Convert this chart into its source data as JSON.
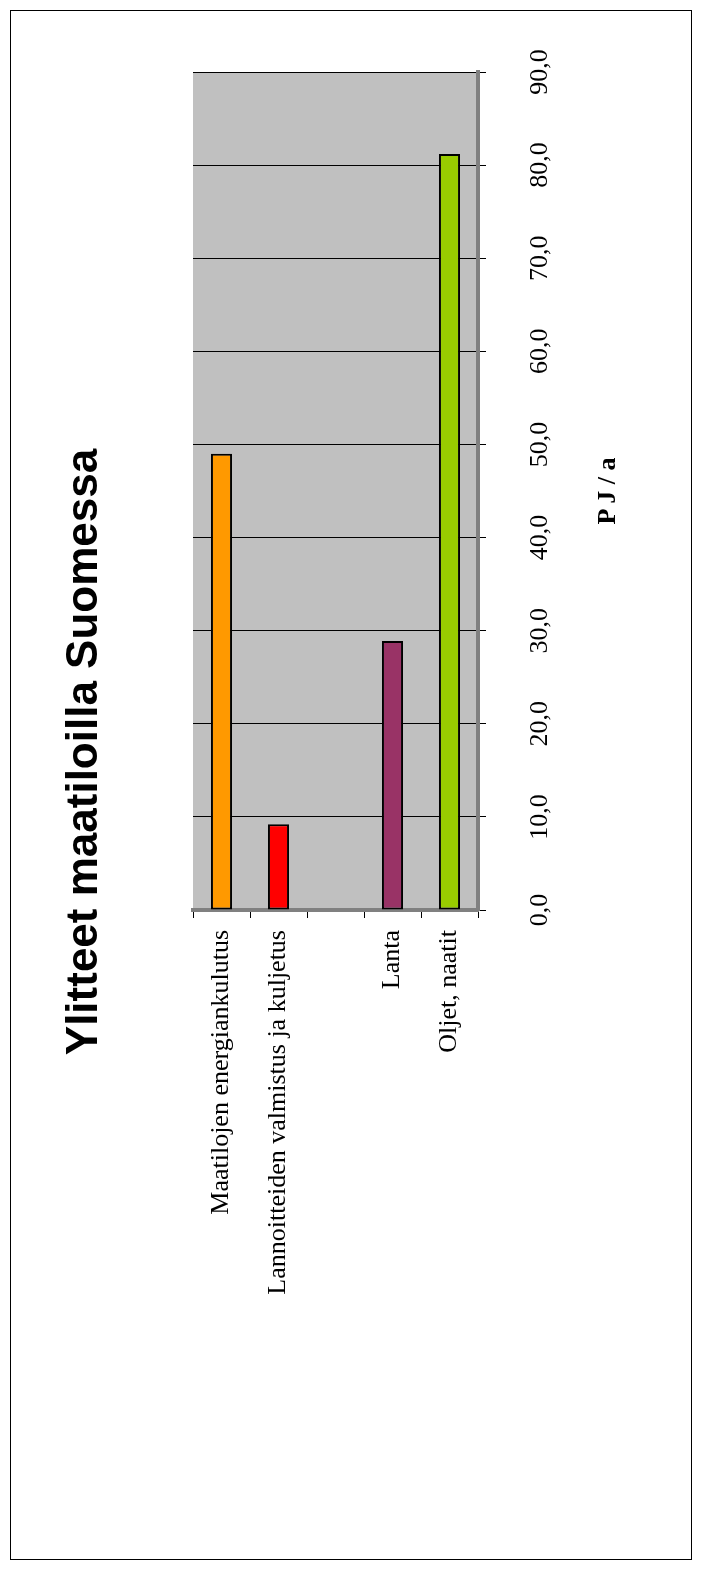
{
  "chart_data": {
    "type": "bar",
    "title": "Ylitteet maatiloilla Suomessa",
    "ylabel": "P J / a",
    "categories": [
      "Maatilojen energiankulutus",
      "Lannoitteiden valmistus ja kuljetus",
      null,
      "Lanta",
      "Oljet, naatit"
    ],
    "values": [
      49,
      9.2,
      null,
      28.9,
      81.2
    ],
    "colors": [
      "#ff9900",
      "#ff0000",
      null,
      "#993366",
      "#99cc00"
    ],
    "ylim": [
      0,
      90
    ],
    "yticks": [
      {
        "value": 0,
        "label": "0,0"
      },
      {
        "value": 10,
        "label": "10,0"
      },
      {
        "value": 20,
        "label": "20,0"
      },
      {
        "value": 30,
        "label": "30,0"
      },
      {
        "value": 40,
        "label": "40,0"
      },
      {
        "value": 50,
        "label": "50,0"
      },
      {
        "value": 60,
        "label": "60,0"
      },
      {
        "value": 70,
        "label": "70,0"
      },
      {
        "value": 80,
        "label": "80,0"
      },
      {
        "value": 90,
        "label": "90,0"
      }
    ],
    "grid": "y",
    "legend": false
  }
}
